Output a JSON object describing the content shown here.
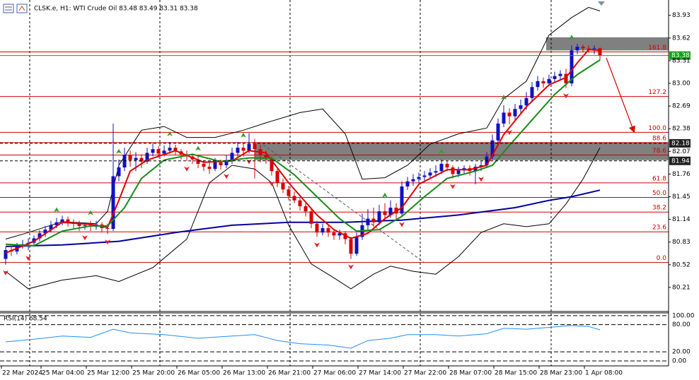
{
  "chart_data": {
    "type": "candlestick",
    "title": "CLSK.e, H1: WTI Crude Oil  83.48 83.49 83.31 83.38",
    "up_color": "#1010c0",
    "down_color": "#d40000",
    "ylim": [
      79.89,
      84.14
    ],
    "yticks": [
      83.93,
      83.62,
      83.31,
      {
        "value": 83,
        "label": "83.00"
      },
      82.69,
      82.38,
      82.07,
      81.76,
      81.45,
      81.14,
      80.83,
      80.52,
      80.21
    ],
    "xticks": [
      {
        "value": 0,
        "label": "22 Mar 2024"
      },
      {
        "value": 7,
        "label": "25 Mar 04:00"
      },
      {
        "value": 15,
        "label": "25 Mar 12:00"
      },
      {
        "value": 23,
        "label": "25 Mar 20:00"
      },
      {
        "value": 31,
        "label": "26 Mar 05:00"
      },
      {
        "value": 39,
        "label": "26 Mar 13:00"
      },
      {
        "value": 47,
        "label": "26 Mar 21:00"
      },
      {
        "value": 55,
        "label": "27 Mar 06:00"
      },
      {
        "value": 63,
        "label": "27 Mar 14:00"
      },
      {
        "value": 71,
        "label": "27 Mar 22:00"
      },
      {
        "value": 79,
        "label": "28 Mar 07:00"
      },
      {
        "value": 87,
        "label": "28 Mar 15:00"
      },
      {
        "value": 95,
        "label": "28 Mar 23:00"
      },
      {
        "value": 103,
        "label": "1 Apr 08:00"
      }
    ],
    "ohlc": [
      [
        80.6,
        80.76,
        80.52,
        80.72
      ],
      [
        80.72,
        80.78,
        80.64,
        80.7
      ],
      [
        80.7,
        80.82,
        80.66,
        80.78
      ],
      [
        80.78,
        80.86,
        80.74,
        80.8
      ],
      [
        80.8,
        80.88,
        80.72,
        80.82
      ],
      [
        80.82,
        80.92,
        80.78,
        80.88
      ],
      [
        80.88,
        80.99,
        80.84,
        80.95
      ],
      [
        80.95,
        81.05,
        80.9,
        81.0
      ],
      [
        81.0,
        81.12,
        80.96,
        81.06
      ],
      [
        81.06,
        81.16,
        81.02,
        81.1
      ],
      [
        81.1,
        81.19,
        81.06,
        81.14
      ],
      [
        81.14,
        81.18,
        81.04,
        81.1
      ],
      [
        81.1,
        81.14,
        81.02,
        81.08
      ],
      [
        81.08,
        81.12,
        80.98,
        81.05
      ],
      [
        81.05,
        81.1,
        81.0,
        81.06
      ],
      [
        81.06,
        81.12,
        80.98,
        81.04
      ],
      [
        81.04,
        81.12,
        81.0,
        81.07
      ],
      [
        81.07,
        81.1,
        80.96,
        81.02
      ],
      [
        81.02,
        81.08,
        80.94,
        81.01
      ],
      [
        81.01,
        82.45,
        80.98,
        81.73
      ],
      [
        81.73,
        81.96,
        81.66,
        81.85
      ],
      [
        81.85,
        82.12,
        81.8,
        82.02
      ],
      [
        82.02,
        82.08,
        81.86,
        81.95
      ],
      [
        81.95,
        82.06,
        81.8,
        81.98
      ],
      [
        81.98,
        82.03,
        81.84,
        81.93
      ],
      [
        81.93,
        82.12,
        81.9,
        82.05
      ],
      [
        82.05,
        82.18,
        82.0,
        82.1
      ],
      [
        82.1,
        82.14,
        81.98,
        82.04
      ],
      [
        82.04,
        82.15,
        82.0,
        82.08
      ],
      [
        82.08,
        82.2,
        82.04,
        82.12
      ],
      [
        82.12,
        82.16,
        82.02,
        82.07
      ],
      [
        82.07,
        82.1,
        81.96,
        82.03
      ],
      [
        82.03,
        82.08,
        81.94,
        82.0
      ],
      [
        82.0,
        82.04,
        81.9,
        81.96
      ],
      [
        81.96,
        82.0,
        81.84,
        81.9
      ],
      [
        81.9,
        81.95,
        81.8,
        81.86
      ],
      [
        81.86,
        81.92,
        81.76,
        81.83
      ],
      [
        81.83,
        81.98,
        81.8,
        81.92
      ],
      [
        81.92,
        81.96,
        81.82,
        81.88
      ],
      [
        81.88,
        82.02,
        81.84,
        81.95
      ],
      [
        81.95,
        82.12,
        81.9,
        82.05
      ],
      [
        82.05,
        82.2,
        82.0,
        82.12
      ],
      [
        82.12,
        82.18,
        82.0,
        82.08
      ],
      [
        82.08,
        82.32,
        82.04,
        82.17
      ],
      [
        82.17,
        82.24,
        81.7,
        82.1
      ],
      [
        82.1,
        82.16,
        81.92,
        82.02
      ],
      [
        82.02,
        82.08,
        81.9,
        81.97
      ],
      [
        81.97,
        82.0,
        81.74,
        81.8
      ],
      [
        81.8,
        81.84,
        81.58,
        81.64
      ],
      [
        81.64,
        81.7,
        81.5,
        81.55
      ],
      [
        81.55,
        81.6,
        81.4,
        81.46
      ],
      [
        81.46,
        81.52,
        81.36,
        81.4
      ],
      [
        81.4,
        81.44,
        81.26,
        81.32
      ],
      [
        81.32,
        81.36,
        81.18,
        81.25
      ],
      [
        81.25,
        81.3,
        81.02,
        81.08
      ],
      [
        81.08,
        81.12,
        80.9,
        80.96
      ],
      [
        80.96,
        81.08,
        80.92,
        81.02
      ],
      [
        81.02,
        81.06,
        80.9,
        80.96
      ],
      [
        80.96,
        81.0,
        80.86,
        80.92
      ],
      [
        80.92,
        81.0,
        80.86,
        80.95
      ],
      [
        80.95,
        80.98,
        80.8,
        80.87
      ],
      [
        80.87,
        80.9,
        80.6,
        80.67
      ],
      [
        80.67,
        80.96,
        80.64,
        80.9
      ],
      [
        80.9,
        81.22,
        80.86,
        81.06
      ],
      [
        81.06,
        81.28,
        81.0,
        81.15
      ],
      [
        81.15,
        81.3,
        81.04,
        81.1
      ],
      [
        81.1,
        81.34,
        81.06,
        81.25
      ],
      [
        81.25,
        81.36,
        81.14,
        81.2
      ],
      [
        81.2,
        81.4,
        81.16,
        81.3
      ],
      [
        81.3,
        81.36,
        81.14,
        81.22
      ],
      [
        81.22,
        81.66,
        81.18,
        81.59
      ],
      [
        81.59,
        81.72,
        81.54,
        81.66
      ],
      [
        81.66,
        81.76,
        81.6,
        81.69
      ],
      [
        81.69,
        81.78,
        81.64,
        81.72
      ],
      [
        81.72,
        81.8,
        81.66,
        81.74
      ],
      [
        81.74,
        81.84,
        81.7,
        81.78
      ],
      [
        81.78,
        81.88,
        81.72,
        81.8
      ],
      [
        81.8,
        81.96,
        81.76,
        81.9
      ],
      [
        81.9,
        81.94,
        81.8,
        81.85
      ],
      [
        81.85,
        81.88,
        81.7,
        81.76
      ],
      [
        81.76,
        81.86,
        81.72,
        81.81
      ],
      [
        81.81,
        81.88,
        81.76,
        81.84
      ],
      [
        81.84,
        81.88,
        81.74,
        81.8
      ],
      [
        81.8,
        81.9,
        81.62,
        81.86
      ],
      [
        81.86,
        81.94,
        81.8,
        81.88
      ],
      [
        81.88,
        82.06,
        81.84,
        82.0
      ],
      [
        82.0,
        82.3,
        81.96,
        82.22
      ],
      [
        82.22,
        82.52,
        82.18,
        82.45
      ],
      [
        82.45,
        82.7,
        82.4,
        82.6
      ],
      [
        82.6,
        82.66,
        82.44,
        82.55
      ],
      [
        82.55,
        82.72,
        82.5,
        82.65
      ],
      [
        82.65,
        82.78,
        82.58,
        82.7
      ],
      [
        82.7,
        82.88,
        82.64,
        82.8
      ],
      [
        82.8,
        83.02,
        82.74,
        82.95
      ],
      [
        82.95,
        83.1,
        82.9,
        83.03
      ],
      [
        83.03,
        83.08,
        82.94,
        83.0
      ],
      [
        83.0,
        83.12,
        82.96,
        83.06
      ],
      [
        83.06,
        83.16,
        83.02,
        83.1
      ],
      [
        83.1,
        83.18,
        83.04,
        83.13
      ],
      [
        83.13,
        83.2,
        82.94,
        83.0
      ],
      [
        83.0,
        83.52,
        82.96,
        83.45
      ],
      [
        83.45,
        83.54,
        83.4,
        83.5
      ],
      [
        83.5,
        83.53,
        83.42,
        83.48
      ],
      [
        83.48,
        83.52,
        83.42,
        83.47
      ],
      [
        83.47,
        83.52,
        83.4,
        83.48
      ],
      [
        83.48,
        83.49,
        83.31,
        83.38
      ]
    ],
    "lines": [
      {
        "color": "#000000",
        "x": [
          0,
          4,
          10,
          16,
          18,
          20,
          24,
          28,
          32,
          37,
          42,
          46,
          52,
          56,
          60,
          63,
          67,
          71,
          75,
          80,
          85,
          88,
          92,
          96,
          100,
          103,
          105
        ],
        "values": [
          80.87,
          80.96,
          81.11,
          81.08,
          81.25,
          81.88,
          82.36,
          82.41,
          82.26,
          82.26,
          82.36,
          82.46,
          82.6,
          82.65,
          82.31,
          81.69,
          81.71,
          81.88,
          82.17,
          82.31,
          82.39,
          82.79,
          83.03,
          83.66,
          83.9,
          84.04,
          83.99
        ]
      },
      {
        "color": "#000000",
        "x": [
          0,
          4,
          10,
          16,
          20,
          26,
          32,
          36,
          40,
          44,
          47,
          50,
          54,
          58,
          61,
          65,
          68,
          72,
          76,
          80,
          84,
          88,
          92,
          96,
          99,
          102,
          105
        ],
        "values": [
          80.43,
          80.19,
          80.31,
          80.37,
          80.29,
          80.48,
          80.87,
          81.64,
          81.88,
          81.83,
          81.64,
          81.06,
          80.53,
          80.34,
          80.19,
          80.39,
          80.5,
          80.43,
          80.39,
          80.63,
          80.96,
          81.08,
          81.04,
          81.08,
          81.35,
          81.69,
          82.12
        ]
      },
      {
        "color": "#0000a0",
        "width": 2,
        "x": [
          0,
          10,
          20,
          30,
          40,
          50,
          60,
          70,
          80,
          90,
          96,
          100,
          105
        ],
        "values": [
          80.77,
          80.79,
          80.84,
          80.96,
          81.06,
          81.1,
          81.1,
          81.13,
          81.2,
          81.3,
          81.4,
          81.45,
          81.54
        ]
      },
      {
        "color": "#e00000",
        "width": 2,
        "x": [
          0,
          5,
          10,
          15,
          18,
          20,
          22,
          25,
          30,
          35,
          40,
          43,
          46,
          50,
          55,
          58,
          61,
          64,
          67,
          70,
          73,
          78,
          82,
          85,
          88,
          92,
          96,
          99,
          101,
          103,
          105
        ],
        "values": [
          80.68,
          80.84,
          81.1,
          81.07,
          81.03,
          81.4,
          81.8,
          81.95,
          82.08,
          81.92,
          81.94,
          82.08,
          82.05,
          81.64,
          81.2,
          81.0,
          80.88,
          80.95,
          81.15,
          81.3,
          81.62,
          81.82,
          81.82,
          81.88,
          82.3,
          82.68,
          82.98,
          83.08,
          83.28,
          83.46,
          83.45
        ]
      },
      {
        "color": "#1a8a1a",
        "width": 2,
        "x": [
          0,
          5,
          10,
          15,
          18,
          21,
          24,
          28,
          33,
          38,
          43,
          47,
          51,
          55,
          59,
          62,
          66,
          70,
          74,
          78,
          83,
          86,
          89,
          93,
          97,
          101,
          105
        ],
        "values": [
          80.8,
          80.78,
          80.98,
          81.05,
          81.05,
          81.3,
          81.7,
          81.95,
          82.03,
          81.93,
          81.98,
          81.98,
          81.75,
          81.45,
          81.15,
          80.98,
          81.0,
          81.18,
          81.45,
          81.7,
          81.8,
          81.88,
          82.15,
          82.5,
          82.85,
          83.12,
          83.32
        ]
      }
    ],
    "fibonacci": [
      {
        "label": "161.8",
        "price": 83.43
      },
      {
        "label": "127.2",
        "price": 82.82
      },
      {
        "label": "100.0",
        "price": 82.33
      },
      {
        "label": "88.6",
        "price": 82.19
      },
      {
        "label": "78.6",
        "price": 82.02
      },
      {
        "label": "61.8",
        "price": 81.64
      },
      {
        "label": "50.0",
        "price": 81.44
      },
      {
        "label": "38.2",
        "price": 81.24
      },
      {
        "label": "23.6",
        "price": 80.97
      },
      {
        "label": "0.0",
        "price": 80.55
      }
    ],
    "fib_color": "#d00000",
    "zones": [
      {
        "top": 83.63,
        "bottom": 83.45,
        "start": 96
      },
      {
        "top": 82.19,
        "bottom": 81.95,
        "start": 44.5
      }
    ],
    "zone_color": "#808080",
    "price_tags": [
      {
        "value": 83.38,
        "color": "#1aa01a",
        "line": "solid"
      },
      {
        "value": 82.18,
        "color": "#202020",
        "line": "dashed"
      },
      {
        "value": 81.94,
        "color": "#202020",
        "line": "dashed"
      }
    ],
    "fractals_up": [
      9,
      15,
      20,
      29,
      34,
      42,
      67,
      77,
      88,
      100
    ],
    "fractals_down": [
      0,
      4,
      14,
      18,
      32,
      39,
      43,
      47,
      55,
      61,
      70,
      79,
      84,
      89,
      99
    ],
    "fractal_up_color": "#2ea02e",
    "fractal_down_color": "#e02020",
    "rsi": {
      "label": "RSI(14) 68.54",
      "color": "#1e90ff",
      "ylim": [
        -11,
        106
      ],
      "yticks": [
        {
          "value": 100,
          "label": "100.00"
        },
        {
          "value": 80,
          "label": "80.00"
        },
        {
          "value": 20,
          "label": "20.00"
        },
        {
          "value": 0,
          "label": "0.00"
        }
      ],
      "x": [
        0,
        5,
        10,
        15,
        19,
        22,
        28,
        34,
        40,
        44,
        48,
        52,
        57,
        61,
        64,
        68,
        71,
        76,
        80,
        85,
        88,
        92,
        96,
        100,
        103,
        105
      ],
      "values": [
        42,
        48,
        55,
        52,
        70,
        62,
        58,
        50,
        55,
        58,
        45,
        38,
        35,
        28,
        45,
        50,
        58,
        58,
        55,
        60,
        72,
        70,
        74,
        78,
        76,
        68.54
      ]
    }
  }
}
